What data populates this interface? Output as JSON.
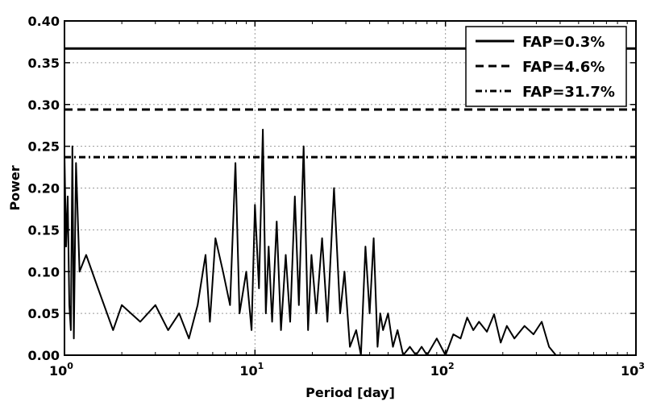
{
  "chart_data": {
    "type": "line",
    "title": "",
    "xlabel": "Period [day]",
    "ylabel": "Power",
    "xscale": "log",
    "xlim": [
      1,
      1000
    ],
    "ylim": [
      0,
      0.4
    ],
    "grid": true,
    "legend_position": "top-right",
    "x_ticks": [
      {
        "value": 1,
        "base": "10",
        "exp": "0"
      },
      {
        "value": 10,
        "base": "10",
        "exp": "1"
      },
      {
        "value": 100,
        "base": "10",
        "exp": "2"
      },
      {
        "value": 1000,
        "base": "10",
        "exp": "3"
      }
    ],
    "y_ticks": [
      0.0,
      0.05,
      0.1,
      0.15,
      0.2,
      0.25,
      0.3,
      0.35,
      0.4
    ],
    "y_tick_labels": [
      "0.00",
      "0.05",
      "0.10",
      "0.15",
      "0.20",
      "0.25",
      "0.30",
      "0.35",
      "0.40"
    ],
    "thresholds": [
      {
        "name": "FAP=0.3%",
        "value": 0.367,
        "style": "solid"
      },
      {
        "name": "FAP=4.6%",
        "value": 0.294,
        "style": "dashed"
      },
      {
        "name": "FAP=31.7%",
        "value": 0.237,
        "style": "dashdot"
      }
    ],
    "series": [
      {
        "color": "#000000",
        "x": [
          1.0,
          1.02,
          1.04,
          1.06,
          1.08,
          1.1,
          1.12,
          1.15,
          1.2,
          1.3,
          1.5,
          1.8,
          2.0,
          2.5,
          3.0,
          3.5,
          4.0,
          4.5,
          5.0,
          5.5,
          5.8,
          6.2,
          6.8,
          7.4,
          7.9,
          8.3,
          9.0,
          9.6,
          10.0,
          10.5,
          11.0,
          11.4,
          11.8,
          12.3,
          13.0,
          13.7,
          14.5,
          15.3,
          16.2,
          17.0,
          18.0,
          19.0,
          19.8,
          21.0,
          22.5,
          24.0,
          26.0,
          28.0,
          29.5,
          31.5,
          34.0,
          36.0,
          38.0,
          40.0,
          42.0,
          44.0,
          45.5,
          47.0,
          50.0,
          53.0,
          56.0,
          60.0,
          65.0,
          70.0,
          75.0,
          80.0,
          90.0,
          100.0,
          110.0,
          120.0,
          130.0,
          140.0,
          150.0,
          165.0,
          180.0,
          195.0,
          210.0,
          230.0,
          260.0,
          290.0,
          320.0,
          350.0,
          380.0,
          420.0,
          460.0,
          500.0,
          560.0,
          620.0,
          700.0
        ],
        "y": [
          0.24,
          0.13,
          0.19,
          0.06,
          0.03,
          0.25,
          0.02,
          0.23,
          0.1,
          0.12,
          0.08,
          0.03,
          0.06,
          0.04,
          0.06,
          0.03,
          0.05,
          0.02,
          0.06,
          0.12,
          0.04,
          0.14,
          0.1,
          0.06,
          0.23,
          0.05,
          0.1,
          0.03,
          0.18,
          0.08,
          0.27,
          0.05,
          0.13,
          0.04,
          0.16,
          0.03,
          0.12,
          0.04,
          0.19,
          0.06,
          0.25,
          0.03,
          0.12,
          0.05,
          0.14,
          0.04,
          0.2,
          0.05,
          0.1,
          0.01,
          0.03,
          0.0,
          0.13,
          0.05,
          0.14,
          0.01,
          0.05,
          0.03,
          0.05,
          0.01,
          0.03,
          0.0,
          0.01,
          0.0,
          0.01,
          0.0,
          0.02,
          0.0,
          0.025,
          0.02,
          0.045,
          0.03,
          0.04,
          0.028,
          0.049,
          0.015,
          0.035,
          0.02,
          0.035,
          0.025,
          0.04,
          0.01,
          0.0,
          0.0,
          0.0,
          0.0,
          0.0,
          0.0,
          0.0
        ]
      }
    ]
  }
}
